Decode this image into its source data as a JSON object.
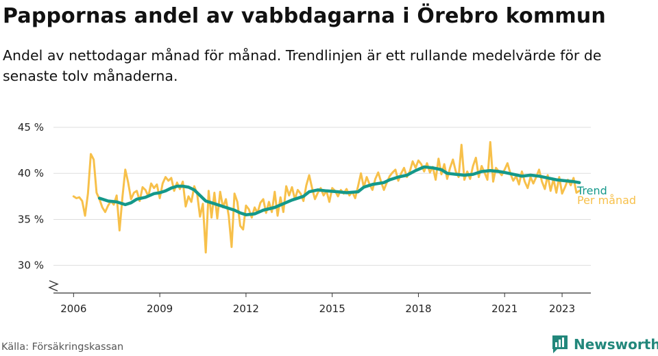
{
  "header": {
    "title": "Pappornas andel av vabbdagarna i Örebro kommun",
    "subtitle": "Andel av nettodagar månad för månad. Trendlinjen är ett rullande medelvärde för de senaste tolv månaderna."
  },
  "footer": {
    "source": "Källa: Försäkringskassan",
    "brand": "Newsworthy"
  },
  "colors": {
    "monthly": "#f7c04a",
    "trend": "#14988a",
    "grid": "#dddddd",
    "axis": "#333333",
    "brand": "#22877b"
  },
  "chart_data": {
    "type": "line",
    "x_unit": "year",
    "ylim": [
      27,
      45
    ],
    "y_ticks": [
      30,
      35,
      40,
      45
    ],
    "y_tick_labels": [
      "30 %",
      "35 %",
      "40 %",
      "45 %"
    ],
    "x_ticks": [
      2006,
      2009,
      2012,
      2015,
      2018,
      2021,
      2023
    ],
    "x_tick_labels": [
      "2006",
      "2009",
      "2012",
      "2015",
      "2018",
      "2021",
      "2023"
    ],
    "grid": true,
    "axis_break": true,
    "legend": "right-end-labels",
    "series": [
      {
        "name": "Per månad",
        "color": "#f7c04a",
        "points": [
          [
            2006.0,
            37.5
          ],
          [
            2006.1,
            37.3
          ],
          [
            2006.2,
            37.4
          ],
          [
            2006.3,
            37.0
          ],
          [
            2006.4,
            35.4
          ],
          [
            2006.5,
            37.8
          ],
          [
            2006.6,
            42.1
          ],
          [
            2006.7,
            41.5
          ],
          [
            2006.8,
            37.9
          ],
          [
            2006.9,
            37.2
          ],
          [
            2007.0,
            36.3
          ],
          [
            2007.1,
            35.8
          ],
          [
            2007.2,
            36.5
          ],
          [
            2007.3,
            37.0
          ],
          [
            2007.4,
            36.6
          ],
          [
            2007.5,
            37.6
          ],
          [
            2007.6,
            33.8
          ],
          [
            2007.7,
            37.4
          ],
          [
            2007.8,
            40.4
          ],
          [
            2007.9,
            39.0
          ],
          [
            2008.0,
            37.2
          ],
          [
            2008.1,
            37.9
          ],
          [
            2008.2,
            38.1
          ],
          [
            2008.3,
            37.0
          ],
          [
            2008.4,
            38.5
          ],
          [
            2008.5,
            38.2
          ],
          [
            2008.6,
            37.5
          ],
          [
            2008.7,
            38.9
          ],
          [
            2008.8,
            38.4
          ],
          [
            2008.9,
            38.8
          ],
          [
            2009.0,
            37.3
          ],
          [
            2009.1,
            38.9
          ],
          [
            2009.2,
            39.6
          ],
          [
            2009.3,
            39.2
          ],
          [
            2009.4,
            39.5
          ],
          [
            2009.5,
            38.1
          ],
          [
            2009.6,
            39.0
          ],
          [
            2009.7,
            38.3
          ],
          [
            2009.8,
            39.1
          ],
          [
            2009.9,
            36.4
          ],
          [
            2010.0,
            37.5
          ],
          [
            2010.1,
            36.9
          ],
          [
            2010.2,
            38.6
          ],
          [
            2010.3,
            37.8
          ],
          [
            2010.4,
            35.3
          ],
          [
            2010.5,
            36.7
          ],
          [
            2010.6,
            31.4
          ],
          [
            2010.7,
            38.1
          ],
          [
            2010.8,
            35.2
          ],
          [
            2010.9,
            37.9
          ],
          [
            2011.0,
            35.1
          ],
          [
            2011.1,
            38.0
          ],
          [
            2011.2,
            36.3
          ],
          [
            2011.3,
            37.2
          ],
          [
            2011.4,
            35.4
          ],
          [
            2011.5,
            32.0
          ],
          [
            2011.6,
            37.8
          ],
          [
            2011.7,
            36.9
          ],
          [
            2011.8,
            34.3
          ],
          [
            2011.9,
            33.9
          ],
          [
            2012.0,
            36.5
          ],
          [
            2012.1,
            36.1
          ],
          [
            2012.2,
            35.2
          ],
          [
            2012.3,
            36.3
          ],
          [
            2012.4,
            35.7
          ],
          [
            2012.5,
            36.8
          ],
          [
            2012.6,
            37.2
          ],
          [
            2012.7,
            35.7
          ],
          [
            2012.8,
            36.9
          ],
          [
            2012.9,
            35.8
          ],
          [
            2013.0,
            38.0
          ],
          [
            2013.1,
            35.4
          ],
          [
            2013.2,
            37.4
          ],
          [
            2013.3,
            35.8
          ],
          [
            2013.4,
            38.6
          ],
          [
            2013.5,
            37.6
          ],
          [
            2013.6,
            38.5
          ],
          [
            2013.7,
            37.2
          ],
          [
            2013.8,
            38.2
          ],
          [
            2013.9,
            37.8
          ],
          [
            2014.0,
            37.0
          ],
          [
            2014.1,
            38.7
          ],
          [
            2014.2,
            39.8
          ],
          [
            2014.3,
            38.4
          ],
          [
            2014.4,
            37.2
          ],
          [
            2014.5,
            37.9
          ],
          [
            2014.6,
            38.4
          ],
          [
            2014.7,
            37.6
          ],
          [
            2014.8,
            38.1
          ],
          [
            2014.9,
            36.9
          ],
          [
            2015.0,
            38.4
          ],
          [
            2015.1,
            38.1
          ],
          [
            2015.2,
            37.5
          ],
          [
            2015.3,
            38.2
          ],
          [
            2015.4,
            37.8
          ],
          [
            2015.5,
            38.3
          ],
          [
            2015.6,
            37.6
          ],
          [
            2015.7,
            38.0
          ],
          [
            2015.8,
            37.3
          ],
          [
            2015.9,
            38.6
          ],
          [
            2016.0,
            40.0
          ],
          [
            2016.1,
            38.5
          ],
          [
            2016.2,
            39.6
          ],
          [
            2016.3,
            38.8
          ],
          [
            2016.4,
            38.2
          ],
          [
            2016.5,
            39.4
          ],
          [
            2016.6,
            40.1
          ],
          [
            2016.7,
            39.1
          ],
          [
            2016.8,
            38.2
          ],
          [
            2016.9,
            39.0
          ],
          [
            2017.0,
            39.7
          ],
          [
            2017.1,
            40.1
          ],
          [
            2017.2,
            40.4
          ],
          [
            2017.3,
            39.2
          ],
          [
            2017.4,
            40.0
          ],
          [
            2017.5,
            40.6
          ],
          [
            2017.6,
            39.6
          ],
          [
            2017.7,
            40.2
          ],
          [
            2017.8,
            41.3
          ],
          [
            2017.9,
            40.6
          ],
          [
            2018.0,
            41.4
          ],
          [
            2018.1,
            41.0
          ],
          [
            2018.2,
            40.2
          ],
          [
            2018.3,
            41.1
          ],
          [
            2018.4,
            40.1
          ],
          [
            2018.5,
            40.7
          ],
          [
            2018.6,
            39.3
          ],
          [
            2018.7,
            41.6
          ],
          [
            2018.8,
            39.9
          ],
          [
            2018.9,
            41.0
          ],
          [
            2019.0,
            39.4
          ],
          [
            2019.1,
            40.6
          ],
          [
            2019.2,
            41.5
          ],
          [
            2019.3,
            40.2
          ],
          [
            2019.4,
            39.6
          ],
          [
            2019.5,
            43.1
          ],
          [
            2019.6,
            39.3
          ],
          [
            2019.7,
            40.2
          ],
          [
            2019.8,
            39.4
          ],
          [
            2019.9,
            40.8
          ],
          [
            2020.0,
            41.7
          ],
          [
            2020.1,
            39.6
          ],
          [
            2020.2,
            40.8
          ],
          [
            2020.3,
            40.1
          ],
          [
            2020.4,
            39.3
          ],
          [
            2020.5,
            43.4
          ],
          [
            2020.6,
            39.1
          ],
          [
            2020.7,
            40.6
          ],
          [
            2020.8,
            40.2
          ],
          [
            2020.9,
            39.8
          ],
          [
            2021.0,
            40.4
          ],
          [
            2021.1,
            41.1
          ],
          [
            2021.2,
            40.0
          ],
          [
            2021.3,
            39.2
          ],
          [
            2021.4,
            39.7
          ],
          [
            2021.5,
            38.8
          ],
          [
            2021.6,
            40.2
          ],
          [
            2021.7,
            39.1
          ],
          [
            2021.8,
            38.4
          ],
          [
            2021.9,
            39.6
          ],
          [
            2022.0,
            38.9
          ],
          [
            2022.1,
            39.6
          ],
          [
            2022.2,
            40.4
          ],
          [
            2022.3,
            39.1
          ],
          [
            2022.4,
            38.3
          ],
          [
            2022.5,
            39.8
          ],
          [
            2022.6,
            38.1
          ],
          [
            2022.7,
            39.4
          ],
          [
            2022.8,
            37.9
          ],
          [
            2022.9,
            39.6
          ],
          [
            2023.0,
            37.8
          ],
          [
            2023.1,
            38.5
          ],
          [
            2023.2,
            39.3
          ],
          [
            2023.3,
            38.7
          ],
          [
            2023.4,
            39.5
          ],
          [
            2023.5,
            37.9
          ],
          [
            2023.6,
            38.1
          ]
        ]
      },
      {
        "name": "Trend",
        "color": "#14988a",
        "points": [
          [
            2006.9,
            37.3
          ],
          [
            2007.2,
            37.0
          ],
          [
            2007.5,
            36.9
          ],
          [
            2007.8,
            36.6
          ],
          [
            2008.0,
            36.8
          ],
          [
            2008.2,
            37.2
          ],
          [
            2008.5,
            37.4
          ],
          [
            2008.8,
            37.8
          ],
          [
            2009.0,
            37.9
          ],
          [
            2009.2,
            38.1
          ],
          [
            2009.4,
            38.4
          ],
          [
            2009.6,
            38.6
          ],
          [
            2009.8,
            38.6
          ],
          [
            2010.0,
            38.5
          ],
          [
            2010.2,
            38.2
          ],
          [
            2010.4,
            37.6
          ],
          [
            2010.6,
            37.0
          ],
          [
            2010.8,
            36.8
          ],
          [
            2011.0,
            36.6
          ],
          [
            2011.3,
            36.3
          ],
          [
            2011.6,
            36.0
          ],
          [
            2011.8,
            35.7
          ],
          [
            2012.0,
            35.5
          ],
          [
            2012.3,
            35.6
          ],
          [
            2012.6,
            36.0
          ],
          [
            2013.0,
            36.3
          ],
          [
            2013.3,
            36.7
          ],
          [
            2013.6,
            37.1
          ],
          [
            2014.0,
            37.5
          ],
          [
            2014.2,
            38.0
          ],
          [
            2014.5,
            38.2
          ],
          [
            2014.8,
            38.1
          ],
          [
            2015.2,
            38.0
          ],
          [
            2015.5,
            37.9
          ],
          [
            2015.9,
            38.0
          ],
          [
            2016.1,
            38.5
          ],
          [
            2016.4,
            38.8
          ],
          [
            2016.8,
            39.0
          ],
          [
            2017.0,
            39.3
          ],
          [
            2017.3,
            39.6
          ],
          [
            2017.6,
            39.8
          ],
          [
            2017.9,
            40.3
          ],
          [
            2018.2,
            40.7
          ],
          [
            2018.5,
            40.6
          ],
          [
            2018.8,
            40.4
          ],
          [
            2019.0,
            40.0
          ],
          [
            2019.3,
            39.9
          ],
          [
            2019.6,
            39.8
          ],
          [
            2019.9,
            39.9
          ],
          [
            2020.2,
            40.2
          ],
          [
            2020.5,
            40.3
          ],
          [
            2020.8,
            40.2
          ],
          [
            2021.0,
            40.1
          ],
          [
            2021.3,
            39.9
          ],
          [
            2021.6,
            39.7
          ],
          [
            2021.9,
            39.8
          ],
          [
            2022.2,
            39.7
          ],
          [
            2022.5,
            39.5
          ],
          [
            2022.8,
            39.3
          ],
          [
            2023.1,
            39.2
          ],
          [
            2023.4,
            39.1
          ],
          [
            2023.6,
            39.0
          ]
        ]
      }
    ]
  }
}
